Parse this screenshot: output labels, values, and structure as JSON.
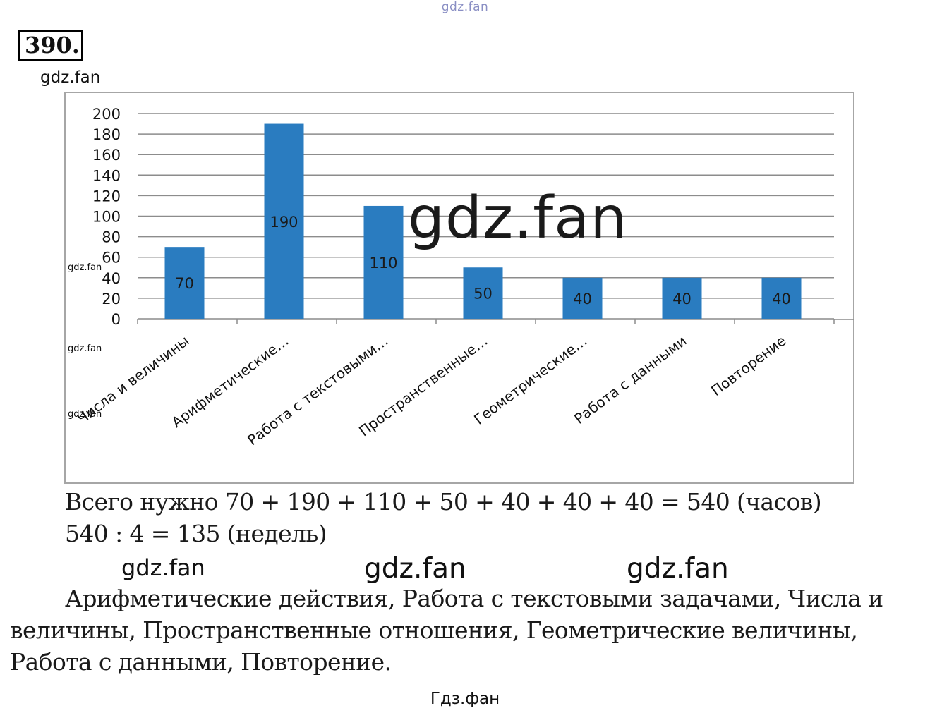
{
  "watermarks": {
    "top": "gdz.fan",
    "under_number": "gdz.fan",
    "chart_left_1": "gdz.fan",
    "chart_left_2": "gdz.fan",
    "chart_left_3": "gdz.fan",
    "chart_center": "gdz.fan",
    "mid_1": "gdz.fan",
    "mid_2": "gdz.fan",
    "mid_3": "gdz.fan",
    "bottom": "Гдз.фан"
  },
  "task": {
    "number": "390."
  },
  "colors": {
    "bar": "#2a7cc0",
    "grid": "#8c8c8c",
    "frame": "#a6a6a6"
  },
  "chart_data": {
    "type": "bar",
    "categories": [
      "Числа и величины",
      "Арифметические…",
      "Работа с текстовыми…",
      "Пространственные…",
      "Геометрические…",
      "Работа с данными",
      "Повторение"
    ],
    "values": [
      70,
      190,
      110,
      50,
      40,
      40,
      40
    ],
    "data_labels": [
      "70",
      "190",
      "110",
      "50",
      "40",
      "40",
      "40"
    ],
    "y_ticks": [
      "0",
      "20",
      "40",
      "60",
      "80",
      "100",
      "120",
      "140",
      "160",
      "180",
      "200"
    ],
    "ylim": [
      0,
      200
    ],
    "grid": true,
    "legend": "none"
  },
  "solution": {
    "line1": "Всего нужно 70 + 190 + 110 + 50 + 40 + 40 + 40 = 540 (часов)",
    "line2": "540 : 4 = 135 (недель)"
  },
  "answer": {
    "text": "Арифметические действия, Работа с текстовыми задачами, Числа и величины, Пространственные отношения, Геометрические величины, Работа с данными, Повторение."
  }
}
